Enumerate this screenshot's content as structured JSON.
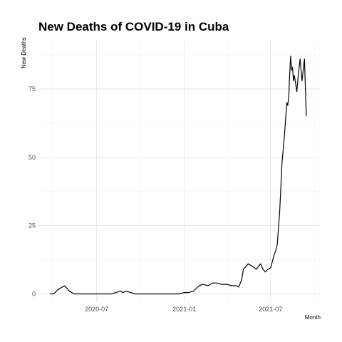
{
  "chart_data": {
    "type": "line",
    "title": "New Deaths of COVID-19 in Cuba",
    "xlabel": "Month",
    "ylabel": "New Deaths",
    "x_tick_labels": [
      "2020-07",
      "2021-01",
      "2021-07"
    ],
    "y_ticks": [
      0,
      25,
      50,
      75
    ],
    "ylim": [
      -3,
      93
    ],
    "xlim": [
      "2020-03-01",
      "2021-10-14"
    ],
    "grid": true,
    "legend": "none",
    "line_color": "#000000",
    "series": [
      {
        "x": [
          "2020-03-25",
          "2020-04-01",
          "2020-04-05",
          "2020-04-10",
          "2020-04-15",
          "2020-04-20",
          "2020-04-25",
          "2020-04-30",
          "2020-05-05",
          "2020-05-10",
          "2020-05-15",
          "2020-05-20",
          "2020-05-25",
          "2020-06-01",
          "2020-06-10",
          "2020-06-20",
          "2020-07-01",
          "2020-07-15",
          "2020-08-01",
          "2020-08-10",
          "2020-08-20",
          "2020-08-25",
          "2020-09-01",
          "2020-09-05",
          "2020-09-10",
          "2020-09-15",
          "2020-09-20",
          "2020-10-01",
          "2020-10-10",
          "2020-10-20",
          "2020-11-01",
          "2020-11-10",
          "2020-11-20",
          "2020-12-01",
          "2020-12-10",
          "2020-12-20",
          "2021-01-01",
          "2021-01-10",
          "2021-01-20",
          "2021-02-01",
          "2021-02-10",
          "2021-02-20",
          "2021-03-01",
          "2021-03-10",
          "2021-03-20",
          "2021-04-01",
          "2021-04-10",
          "2021-04-20",
          "2021-04-25",
          "2021-05-01",
          "2021-05-05",
          "2021-05-10",
          "2021-05-15",
          "2021-05-20",
          "2021-05-25",
          "2021-06-01",
          "2021-06-05",
          "2021-06-10",
          "2021-06-15",
          "2021-06-20",
          "2021-06-25",
          "2021-07-01",
          "2021-07-05",
          "2021-07-08",
          "2021-07-12",
          "2021-07-15",
          "2021-07-20",
          "2021-07-25",
          "2021-07-30",
          "2021-08-04",
          "2021-08-06",
          "2021-08-08",
          "2021-08-10",
          "2021-08-12",
          "2021-08-14",
          "2021-08-16",
          "2021-08-18",
          "2021-08-20",
          "2021-08-25",
          "2021-08-28",
          "2021-09-01",
          "2021-09-05",
          "2021-09-10",
          "2021-09-14"
        ],
        "y": [
          0,
          0,
          0.5,
          1.5,
          2,
          2.5,
          3,
          2,
          1,
          0.5,
          0,
          0,
          0,
          0,
          0,
          0,
          0,
          0,
          0,
          0.5,
          1,
          0.5,
          1,
          0.8,
          0.5,
          0.3,
          0,
          0,
          0,
          0,
          0,
          0,
          0,
          0,
          0,
          0,
          0.5,
          0.5,
          1,
          3,
          3.5,
          3,
          4,
          4,
          3.5,
          3.5,
          3,
          3,
          2.5,
          5,
          9,
          10,
          11,
          10.5,
          10,
          9,
          10,
          11,
          9,
          8,
          9,
          9.5,
          12,
          14,
          16,
          18,
          30,
          48,
          58,
          70,
          69,
          72,
          80,
          87,
          82,
          83,
          78,
          80,
          74,
          80,
          86,
          78,
          86,
          65
        ]
      }
    ]
  }
}
